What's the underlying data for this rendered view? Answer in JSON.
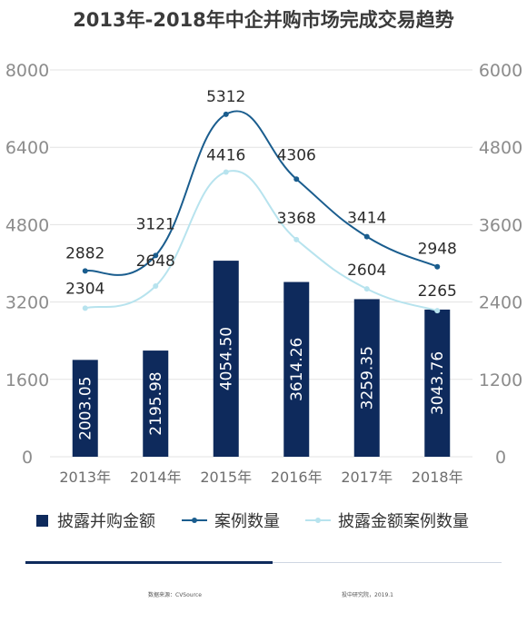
{
  "chart_data": {
    "type": "bar",
    "title": "2013年-2018年中企并购市场完成交易趋势",
    "categories": [
      "2013年",
      "2014年",
      "2015年",
      "2016年",
      "2017年",
      "2018年"
    ],
    "left_axis": {
      "ylim": [
        0,
        8000
      ],
      "ticks": [
        "0",
        "1600",
        "3200",
        "4800",
        "6400",
        "8000"
      ]
    },
    "right_axis": {
      "ylim": [
        0,
        6000
      ],
      "ticks": [
        "0",
        "1200",
        "2400",
        "3600",
        "4800",
        "6000"
      ]
    },
    "series": [
      {
        "name": "披露并购金额",
        "type": "bar",
        "axis": "left",
        "values": [
          2003.05,
          2195.98,
          4054.5,
          3614.26,
          3259.35,
          3043.76
        ],
        "labels": [
          "2003.05",
          "2195.98",
          "4054.50",
          "3614.26",
          "3259.35",
          "3043.76"
        ]
      },
      {
        "name": "案例数量",
        "type": "line",
        "axis": "right",
        "values": [
          2882,
          3121,
          5312,
          4306,
          3414,
          2948
        ],
        "labels": [
          "2882",
          "3121",
          "5312",
          "4306",
          "3414",
          "2948"
        ]
      },
      {
        "name": "披露金额案例数量",
        "type": "line",
        "axis": "right",
        "values": [
          2304,
          2648,
          4416,
          3368,
          2604,
          2265
        ],
        "labels": [
          "2304",
          "2648",
          "4416",
          "3368",
          "2604",
          "2265"
        ]
      }
    ],
    "grid": true,
    "legend_position": "bottom"
  },
  "colors": {
    "bar": "#0e2a5c",
    "line_dark": "#1a5d8e",
    "line_light": "#b7e3ee",
    "grid": "#e3e3e3",
    "axis_text": "#8c8c8c",
    "footer_dark": "#0e2a5c"
  },
  "footer": {
    "source": "数据来源：CVSource",
    "publisher": "投中研究院，2019.1"
  }
}
